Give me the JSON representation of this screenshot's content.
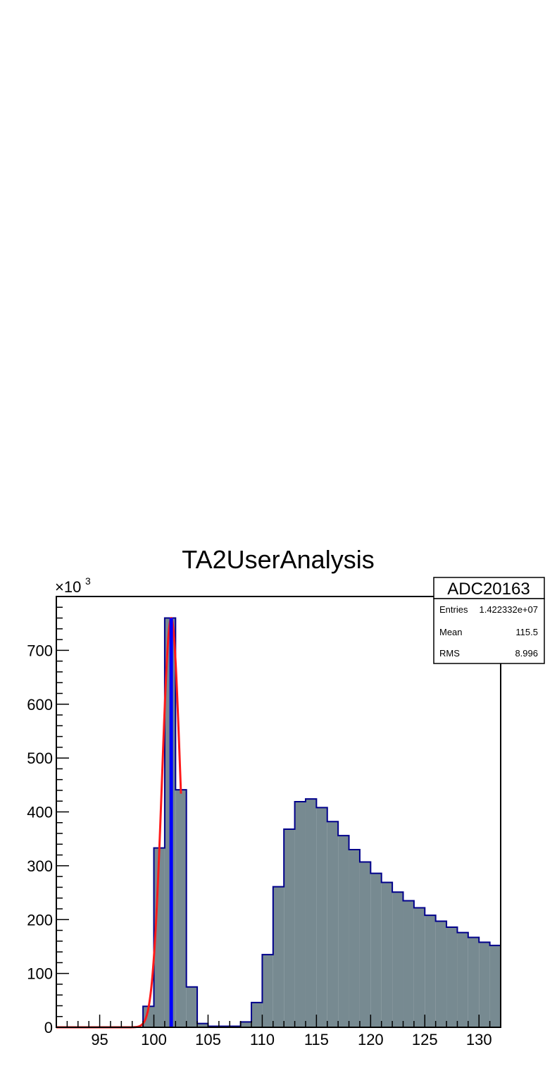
{
  "chart_data": {
    "type": "bar",
    "title": "TA2UserAnalysis",
    "xlabel": "",
    "ylabel": "",
    "xlim": [
      91,
      132
    ],
    "ylim": [
      0,
      800000
    ],
    "y_multiplier_label": "×10",
    "y_multiplier_exponent": "3",
    "x_ticks": [
      95,
      100,
      105,
      110,
      115,
      120,
      125,
      130
    ],
    "x_tick_labels": [
      "95",
      "100",
      "105",
      "110",
      "115",
      "120",
      "125",
      "130"
    ],
    "y_ticks": [
      0,
      100000,
      200000,
      300000,
      400000,
      500000,
      600000,
      700000
    ],
    "y_tick_labels": [
      "0",
      "100",
      "200",
      "300",
      "400",
      "500",
      "600",
      "700"
    ],
    "bin_width": 1,
    "bin_edges_start": 91,
    "values": [
      0,
      0,
      0,
      0,
      0,
      0,
      0,
      0,
      39000,
      333000,
      760000,
      441000,
      75000,
      7000,
      2000,
      2000,
      2000,
      10000,
      46000,
      135000,
      261000,
      368000,
      419000,
      424000,
      408000,
      382000,
      356000,
      330000,
      307000,
      286000,
      269000,
      251000,
      235000,
      222000,
      208000,
      197000,
      186000,
      176000,
      167000,
      158000,
      152000
    ],
    "fit_curve": {
      "type": "gaussian",
      "amplitude": 760000,
      "mean": 101.6,
      "sigma": 0.85,
      "x_range": [
        91,
        102.5
      ]
    },
    "marker_line_x": 101.6,
    "stats_box": {
      "name": "ADC20163",
      "rows": [
        {
          "label": "Entries",
          "value": "1.422332e+07"
        },
        {
          "label": "Mean",
          "value": "115.5"
        },
        {
          "label": "RMS",
          "value": "8.996"
        }
      ]
    },
    "grid": false,
    "colors": {
      "fill": "#778a91",
      "outline": "#00008b",
      "fit": "#ff1a1a",
      "marker": "#0000ff"
    }
  }
}
